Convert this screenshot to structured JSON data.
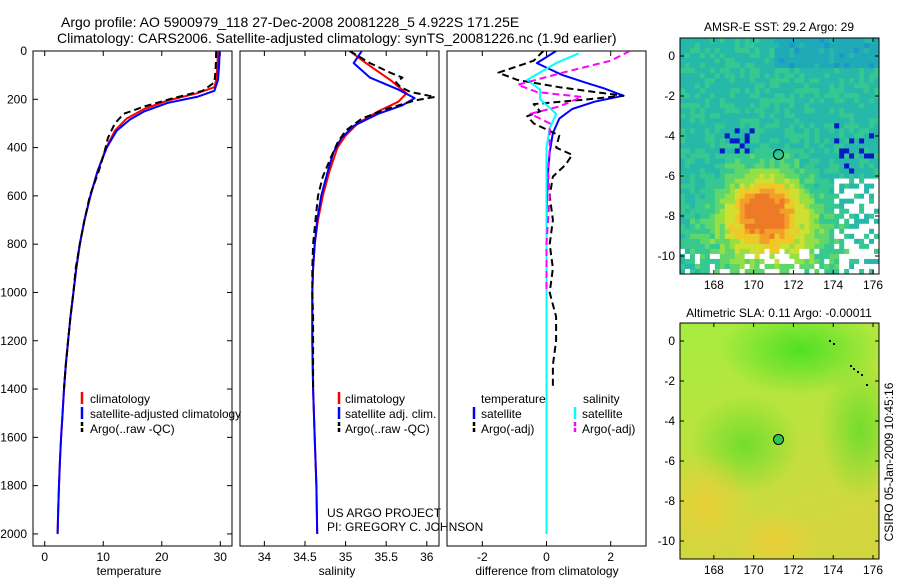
{
  "header": {
    "line1": "Argo profile: AO 5900979_118 27-Dec-2008 20081228_5 4.922S 171.25E",
    "line2": "Climatology: CARS2006. Satellite-adjusted climatology: synTS_20081226.nc (1.9d earlier)"
  },
  "credits": {
    "project": "US ARGO PROJECT",
    "pi": "PI: GREGORY C. JOHNSON",
    "stamp": "CSIRO 05-Jan-2009 10:45:16"
  },
  "chart_data": [
    {
      "type": "line",
      "id": "temperature",
      "xlabel": "temperature",
      "ylabel": "",
      "xlim": [
        -2,
        32
      ],
      "ylim": [
        2050,
        0
      ],
      "xticks": [
        0,
        10,
        20,
        30
      ],
      "yticks": [
        0,
        200,
        400,
        600,
        800,
        1000,
        1200,
        1400,
        1600,
        1800,
        2000
      ],
      "legend": {
        "position": "lower-right",
        "entries": [
          "climatology",
          "satellite-adjusted climatology",
          "Argo(..raw -QC)"
        ]
      },
      "series": [
        {
          "name": "climatology",
          "color": "#ff0000",
          "dash": "solid",
          "points": [
            [
              29.6,
              0
            ],
            [
              29.5,
              60
            ],
            [
              29.3,
              120
            ],
            [
              29.0,
              150
            ],
            [
              26.0,
              175
            ],
            [
              21.0,
              205
            ],
            [
              17.0,
              240
            ],
            [
              14.0,
              280
            ],
            [
              12.0,
              330
            ],
            [
              10.5,
              400
            ],
            [
              9.0,
              500
            ],
            [
              7.8,
              600
            ],
            [
              6.8,
              700
            ],
            [
              6.0,
              800
            ],
            [
              5.4,
              900
            ],
            [
              4.9,
              1000
            ],
            [
              4.4,
              1100
            ],
            [
              4.0,
              1200
            ],
            [
              3.6,
              1300
            ],
            [
              3.3,
              1400
            ],
            [
              3.05,
              1500
            ],
            [
              2.8,
              1600
            ],
            [
              2.6,
              1700
            ],
            [
              2.45,
              1800
            ],
            [
              2.3,
              1900
            ],
            [
              2.2,
              2000
            ]
          ]
        },
        {
          "name": "satellite-adjusted climatology",
          "color": "#0000ff",
          "dash": "solid",
          "points": [
            [
              29.9,
              0
            ],
            [
              29.8,
              60
            ],
            [
              29.6,
              120
            ],
            [
              29.0,
              165
            ],
            [
              26.0,
              190
            ],
            [
              21.0,
              215
            ],
            [
              17.0,
              250
            ],
            [
              14.5,
              285
            ],
            [
              12.3,
              330
            ],
            [
              10.6,
              400
            ],
            [
              9.0,
              500
            ],
            [
              7.8,
              600
            ],
            [
              6.8,
              700
            ],
            [
              6.0,
              800
            ],
            [
              5.4,
              900
            ],
            [
              4.9,
              1000
            ],
            [
              4.4,
              1100
            ],
            [
              4.0,
              1200
            ],
            [
              3.6,
              1300
            ],
            [
              3.3,
              1400
            ],
            [
              3.05,
              1500
            ],
            [
              2.8,
              1600
            ],
            [
              2.6,
              1700
            ],
            [
              2.45,
              1800
            ],
            [
              2.3,
              1900
            ],
            [
              2.2,
              2000
            ]
          ]
        },
        {
          "name": "Argo(..raw -QC)",
          "color": "#000000",
          "dash": "dashed",
          "points": [
            [
              29.3,
              0
            ],
            [
              29.2,
              80
            ],
            [
              29.0,
              130
            ],
            [
              27.0,
              165
            ],
            [
              22.0,
              195
            ],
            [
              17.0,
              230
            ],
            [
              13.5,
              260
            ],
            [
              12.0,
              300
            ],
            [
              10.8,
              360
            ],
            [
              10.2,
              420
            ],
            [
              9.2,
              500
            ],
            [
              7.7,
              600
            ],
            [
              6.8,
              700
            ],
            [
              6.0,
              800
            ],
            [
              5.3,
              900
            ],
            [
              4.9,
              1000
            ],
            [
              4.4,
              1100
            ],
            [
              4.0,
              1200
            ],
            [
              3.6,
              1300
            ],
            [
              3.3,
              1400
            ]
          ]
        }
      ]
    },
    {
      "type": "line",
      "id": "salinity",
      "xlabel": "salinity",
      "ylabel": "",
      "xlim": [
        33.7,
        36.15
      ],
      "ylim": [
        2050,
        0
      ],
      "xticks": [
        34,
        34.5,
        35,
        35.5,
        36
      ],
      "yticks": [],
      "legend": {
        "position": "lower-right",
        "entries": [
          "climatology",
          "satellite adj. clim.",
          "Argo(..raw -QC)"
        ]
      },
      "series": [
        {
          "name": "climatology",
          "color": "#ff0000",
          "dash": "solid",
          "points": [
            [
              35.05,
              0
            ],
            [
              35.25,
              50
            ],
            [
              35.55,
              120
            ],
            [
              35.75,
              175
            ],
            [
              35.65,
              210
            ],
            [
              35.4,
              250
            ],
            [
              35.15,
              300
            ],
            [
              35.0,
              350
            ],
            [
              34.9,
              400
            ],
            [
              34.8,
              500
            ],
            [
              34.72,
              600
            ],
            [
              34.66,
              700
            ],
            [
              34.62,
              800
            ],
            [
              34.6,
              900
            ],
            [
              34.59,
              1000
            ],
            [
              34.59,
              1200
            ],
            [
              34.6,
              1400
            ],
            [
              34.62,
              1600
            ],
            [
              34.64,
              1800
            ],
            [
              34.65,
              2000
            ]
          ]
        },
        {
          "name": "satellite adj. clim.",
          "color": "#0000ff",
          "dash": "solid",
          "points": [
            [
              35.2,
              0
            ],
            [
              35.1,
              50
            ],
            [
              35.3,
              110
            ],
            [
              35.65,
              160
            ],
            [
              35.85,
              195
            ],
            [
              35.7,
              225
            ],
            [
              35.4,
              260
            ],
            [
              35.1,
              310
            ],
            [
              34.95,
              360
            ],
            [
              34.85,
              420
            ],
            [
              34.78,
              500
            ],
            [
              34.7,
              600
            ],
            [
              34.65,
              700
            ],
            [
              34.62,
              800
            ],
            [
              34.6,
              900
            ],
            [
              34.59,
              1000
            ],
            [
              34.59,
              1200
            ],
            [
              34.6,
              1400
            ],
            [
              34.62,
              1600
            ],
            [
              34.64,
              1800
            ],
            [
              34.65,
              2000
            ]
          ]
        },
        {
          "name": "Argo(..raw -QC)",
          "color": "#000000",
          "dash": "dashed",
          "points": [
            [
              35.05,
              0
            ],
            [
              35.3,
              50
            ],
            [
              35.55,
              90
            ],
            [
              35.7,
              110
            ],
            [
              35.62,
              130
            ],
            [
              35.68,
              150
            ],
            [
              35.8,
              170
            ],
            [
              36.1,
              190
            ],
            [
              35.85,
              205
            ],
            [
              35.5,
              240
            ],
            [
              35.2,
              280
            ],
            [
              35.0,
              330
            ],
            [
              34.9,
              380
            ],
            [
              34.82,
              440
            ],
            [
              34.72,
              520
            ],
            [
              34.66,
              600
            ],
            [
              34.63,
              700
            ],
            [
              34.6,
              800
            ],
            [
              34.59,
              900
            ],
            [
              34.59,
              1000
            ],
            [
              34.6,
              1100
            ],
            [
              34.6,
              1200
            ],
            [
              34.6,
              1300
            ],
            [
              34.6,
              1400
            ]
          ]
        }
      ]
    },
    {
      "type": "line",
      "id": "difference",
      "xlabel": "difference from climatology",
      "ylabel": "",
      "xlim": [
        -3.1,
        3.1
      ],
      "ylim": [
        2050,
        0
      ],
      "xticks": [
        -2,
        0,
        2
      ],
      "yticks": [],
      "legend": {
        "position": "lower-right",
        "groups": [
          {
            "title": "temperature",
            "entries": [
              "satellite",
              "Argo(-adj)"
            ]
          },
          {
            "title": "salinity",
            "entries": [
              "satellite",
              "Argo(-adj)"
            ]
          }
        ]
      },
      "series": [
        {
          "name": "satellite",
          "group": "temperature",
          "color": "#0000ff",
          "dash": "solid",
          "points": [
            [
              0.3,
              0
            ],
            [
              -0.3,
              50
            ],
            [
              0.5,
              100
            ],
            [
              1.2,
              130
            ],
            [
              1.8,
              155
            ],
            [
              2.2,
              175
            ],
            [
              2.4,
              185
            ],
            [
              1.5,
              210
            ],
            [
              0.8,
              240
            ],
            [
              0.4,
              280
            ],
            [
              0.2,
              340
            ],
            [
              0.1,
              420
            ],
            [
              0.05,
              500
            ],
            [
              0.02,
              600
            ],
            [
              0.0,
              700
            ],
            [
              0.0,
              1000
            ],
            [
              0.0,
              1500
            ],
            [
              0.0,
              2000
            ]
          ]
        },
        {
          "name": "Argo(-adj)",
          "group": "temperature",
          "color": "#000000",
          "dash": "dashed",
          "points": [
            [
              -0.1,
              0
            ],
            [
              -0.4,
              40
            ],
            [
              -1.5,
              90
            ],
            [
              -0.9,
              120
            ],
            [
              0.4,
              150
            ],
            [
              1.5,
              170
            ],
            [
              2.4,
              185
            ],
            [
              1.3,
              200
            ],
            [
              -0.4,
              220
            ],
            [
              -0.2,
              250
            ],
            [
              -0.6,
              270
            ],
            [
              -0.4,
              300
            ],
            [
              0.4,
              350
            ],
            [
              0.3,
              400
            ],
            [
              0.8,
              430
            ],
            [
              0.6,
              470
            ],
            [
              0.2,
              520
            ],
            [
              0.1,
              600
            ],
            [
              0.2,
              700
            ],
            [
              0.1,
              800
            ],
            [
              0.2,
              900
            ],
            [
              0.1,
              1000
            ],
            [
              0.3,
              1100
            ],
            [
              0.3,
              1200
            ],
            [
              0.2,
              1300
            ],
            [
              0.2,
              1400
            ]
          ]
        },
        {
          "name": "satellite",
          "group": "salinity",
          "color": "#00ffff",
          "dash": "solid",
          "points": [
            [
              1.0,
              10
            ],
            [
              0.3,
              50
            ],
            [
              -0.6,
              120
            ],
            [
              -0.2,
              160
            ],
            [
              -0.2,
              200
            ],
            [
              0.3,
              260
            ],
            [
              0.1,
              320
            ],
            [
              0.0,
              400
            ],
            [
              0.0,
              500
            ],
            [
              0.0,
              700
            ],
            [
              0.0,
              1000
            ],
            [
              0.0,
              1500
            ],
            [
              0.0,
              2000
            ]
          ]
        },
        {
          "name": "Argo(-adj)",
          "group": "salinity",
          "color": "#ff00ff",
          "dash": "dashed",
          "points": [
            [
              2.6,
              0
            ],
            [
              2.0,
              40
            ],
            [
              0.5,
              90
            ],
            [
              -0.9,
              140
            ],
            [
              -0.3,
              170
            ],
            [
              1.1,
              190
            ],
            [
              0.4,
              230
            ],
            [
              -0.5,
              260
            ],
            [
              0.1,
              300
            ],
            [
              0.1,
              400
            ],
            [
              0.05,
              500
            ],
            [
              0.1,
              600
            ],
            [
              0.0,
              800
            ],
            [
              0.0,
              1000
            ]
          ]
        }
      ]
    },
    {
      "type": "heatmap",
      "id": "sst-map",
      "title": "AMSR-E SST: 29.2  Argo: 29",
      "xlim": [
        166.3,
        176.3
      ],
      "ylim": [
        -10.9,
        0.9
      ],
      "xticks": [
        168,
        170,
        172,
        174,
        176
      ],
      "yticks": [
        0,
        -2,
        -4,
        -6,
        -8,
        -10
      ],
      "marker": {
        "lon": 171.25,
        "lat": -4.922
      }
    },
    {
      "type": "heatmap",
      "id": "sla-map",
      "title": "Altimetric SLA: 0.11  Argo: -0.00011",
      "xlim": [
        166.3,
        176.3
      ],
      "ylim": [
        -10.9,
        0.9
      ],
      "xticks": [
        168,
        170,
        172,
        174,
        176
      ],
      "yticks": [
        0,
        -2,
        -4,
        -6,
        -8,
        -10
      ],
      "marker": {
        "lon": 171.25,
        "lat": -4.922
      }
    }
  ]
}
